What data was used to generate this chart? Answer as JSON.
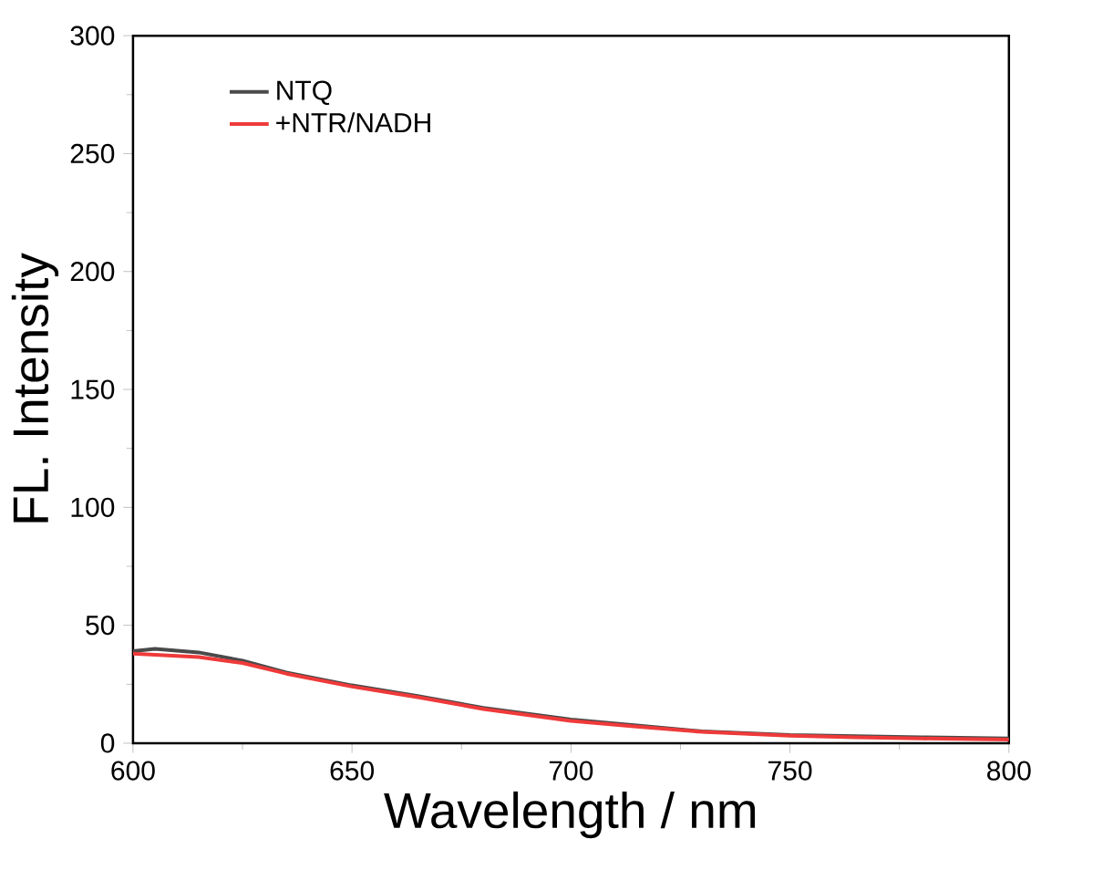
{
  "chart_data": {
    "type": "line",
    "xlabel": "Wavelength / nm",
    "ylabel": "FL. Intensity",
    "xlim": [
      600,
      800
    ],
    "ylim": [
      0,
      300
    ],
    "xticks": [
      600,
      650,
      700,
      750,
      800
    ],
    "yticks": [
      0,
      50,
      100,
      150,
      200,
      250,
      300
    ],
    "legend": "top left",
    "grid": false,
    "marker": "none",
    "line_style": "solid",
    "series": [
      {
        "name": "NTQ",
        "color": "#4a4a4a",
        "x": [
          600,
          605,
          615,
          625,
          635,
          650,
          665,
          680,
          700,
          715,
          730,
          750,
          765,
          780,
          800
        ],
        "values": [
          39,
          40,
          38.5,
          35,
          30,
          24.5,
          20,
          15,
          10,
          7.5,
          5,
          3.5,
          3,
          2.5,
          2
        ]
      },
      {
        "name": "+NTR/NADH",
        "color": "#ef3a3a",
        "x": [
          600,
          605,
          615,
          625,
          635,
          650,
          665,
          680,
          700,
          715,
          730,
          750,
          765,
          780,
          800
        ],
        "values": [
          38,
          37.5,
          36.5,
          34,
          29.5,
          24,
          19.5,
          14.5,
          9.5,
          7,
          4.8,
          3.2,
          2.5,
          2,
          1.5
        ]
      }
    ]
  }
}
